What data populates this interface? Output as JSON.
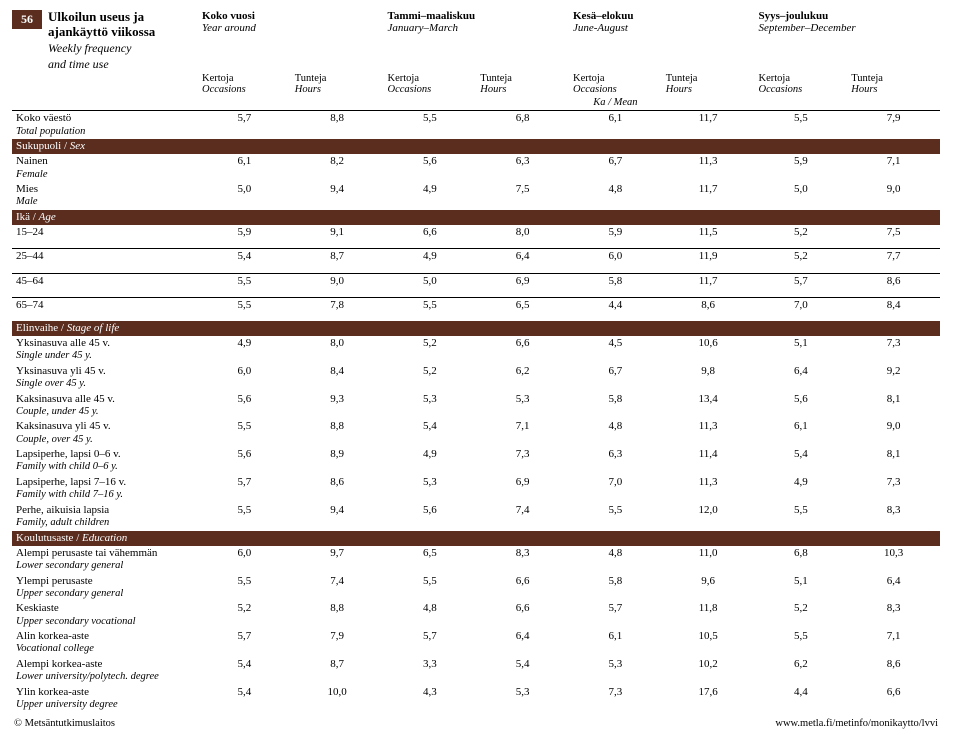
{
  "page_number": "56",
  "title_fi": "Ulkoilun useus ja ajankäyttö viikossa",
  "title_en_1": "Weekly frequency",
  "title_en_2": "and time use",
  "periods": [
    {
      "fi": "Koko vuosi",
      "en": "Year around"
    },
    {
      "fi": "Tammi–maaliskuu",
      "en": "January–March"
    },
    {
      "fi": "Kesä–elokuu",
      "en": "June-August"
    },
    {
      "fi": "Syys–joulukuu",
      "en": "September–December"
    }
  ],
  "subheads": {
    "kertoja_fi": "Kertoja",
    "kertoja_en": "Occasions",
    "tunteja_fi": "Tunteja",
    "tunteja_en": "Hours",
    "mean": "Ka / Mean"
  },
  "rows": [
    {
      "type": "data",
      "fi": "Koko väestö",
      "en": "Total population",
      "v": [
        "5,7",
        "8,8",
        "5,5",
        "6,8",
        "6,1",
        "11,7",
        "5,5",
        "7,9"
      ],
      "ruled": true
    },
    {
      "type": "section",
      "fi": "Sukupuoli / ",
      "en": "Sex"
    },
    {
      "type": "data",
      "fi": "Nainen",
      "en": "Female",
      "v": [
        "6,1",
        "8,2",
        "5,6",
        "6,3",
        "6,7",
        "11,3",
        "5,9",
        "7,1"
      ]
    },
    {
      "type": "data",
      "fi": "Mies",
      "en": "Male",
      "v": [
        "5,0",
        "9,4",
        "4,9",
        "7,5",
        "4,8",
        "11,7",
        "5,0",
        "9,0"
      ]
    },
    {
      "type": "section",
      "fi": "Ikä / ",
      "en": "Age"
    },
    {
      "type": "data",
      "fi": "15–24",
      "en": "",
      "v": [
        "5,9",
        "9,1",
        "6,6",
        "8,0",
        "5,9",
        "11,5",
        "5,2",
        "7,5"
      ]
    },
    {
      "type": "spacer"
    },
    {
      "type": "data",
      "fi": "25–44",
      "en": "",
      "v": [
        "5,4",
        "8,7",
        "4,9",
        "6,4",
        "6,0",
        "11,9",
        "5,2",
        "7,7"
      ],
      "ruled": true
    },
    {
      "type": "spacer"
    },
    {
      "type": "data",
      "fi": "45–64",
      "en": "",
      "v": [
        "5,5",
        "9,0",
        "5,0",
        "6,9",
        "5,8",
        "11,7",
        "5,7",
        "8,6"
      ],
      "ruled": true
    },
    {
      "type": "spacer"
    },
    {
      "type": "data",
      "fi": "65–74",
      "en": "",
      "v": [
        "5,5",
        "7,8",
        "5,5",
        "6,5",
        "4,4",
        "8,6",
        "7,0",
        "8,4"
      ],
      "ruled": true
    },
    {
      "type": "spacer"
    },
    {
      "type": "section",
      "fi": "Elinvaihe / ",
      "en": "Stage of life"
    },
    {
      "type": "data",
      "fi": "Yksinasuva alle 45 v.",
      "en": "Single under 45 y.",
      "v": [
        "4,9",
        "8,0",
        "5,2",
        "6,6",
        "4,5",
        "10,6",
        "5,1",
        "7,3"
      ]
    },
    {
      "type": "data",
      "fi": "Yksinasuva yli 45 v.",
      "en": "Single over 45 y.",
      "v": [
        "6,0",
        "8,4",
        "5,2",
        "6,2",
        "6,7",
        "9,8",
        "6,4",
        "9,2"
      ]
    },
    {
      "type": "data",
      "fi": "Kaksinasuva alle 45 v.",
      "en": "Couple, under 45 y.",
      "v": [
        "5,6",
        "9,3",
        "5,3",
        "5,3",
        "5,8",
        "13,4",
        "5,6",
        "8,1"
      ]
    },
    {
      "type": "data",
      "fi": "Kaksinasuva yli 45 v.",
      "en": "Couple, over 45 y.",
      "v": [
        "5,5",
        "8,8",
        "5,4",
        "7,1",
        "4,8",
        "11,3",
        "6,1",
        "9,0"
      ]
    },
    {
      "type": "data",
      "fi": "Lapsiperhe, lapsi 0–6 v.",
      "en": "Family with child 0–6 y.",
      "v": [
        "5,6",
        "8,9",
        "4,9",
        "7,3",
        "6,3",
        "11,4",
        "5,4",
        "8,1"
      ]
    },
    {
      "type": "data",
      "fi": "Lapsiperhe, lapsi 7–16 v.",
      "en": "Family with child 7–16 y.",
      "v": [
        "5,7",
        "8,6",
        "5,3",
        "6,9",
        "7,0",
        "11,3",
        "4,9",
        "7,3"
      ]
    },
    {
      "type": "data",
      "fi": "Perhe, aikuisia lapsia",
      "en": "Family, adult children",
      "v": [
        "5,5",
        "9,4",
        "5,6",
        "7,4",
        "5,5",
        "12,0",
        "5,5",
        "8,3"
      ]
    },
    {
      "type": "section",
      "fi": "Koulutusaste / ",
      "en": "Education"
    },
    {
      "type": "data",
      "fi": "Alempi perusaste tai vähemmän",
      "en": "Lower secondary general",
      "v": [
        "6,0",
        "9,7",
        "6,5",
        "8,3",
        "4,8",
        "11,0",
        "6,8",
        "10,3"
      ]
    },
    {
      "type": "data",
      "fi": "Ylempi perusaste",
      "en": "Upper secondary general",
      "v": [
        "5,5",
        "7,4",
        "5,5",
        "6,6",
        "5,8",
        "9,6",
        "5,1",
        "6,4"
      ]
    },
    {
      "type": "data",
      "fi": "Keskiaste",
      "en": "Upper secondary vocational",
      "v": [
        "5,2",
        "8,8",
        "4,8",
        "6,6",
        "5,7",
        "11,8",
        "5,2",
        "8,3"
      ]
    },
    {
      "type": "data",
      "fi": "Alin korkea-aste",
      "en": "Vocational college",
      "v": [
        "5,7",
        "7,9",
        "5,7",
        "6,4",
        "6,1",
        "10,5",
        "5,5",
        "7,1"
      ]
    },
    {
      "type": "data",
      "fi": "Alempi korkea-aste",
      "en": "Lower university/polytech. degree",
      "v": [
        "5,4",
        "8,7",
        "3,3",
        "5,4",
        "5,3",
        "10,2",
        "6,2",
        "8,6"
      ]
    },
    {
      "type": "data",
      "fi": "Ylin korkea-aste",
      "en": "Upper university degree",
      "v": [
        "5,4",
        "10,0",
        "4,3",
        "5,3",
        "7,3",
        "17,6",
        "4,4",
        "6,6"
      ]
    }
  ],
  "footer_left": "© Metsäntutkimuslaitos",
  "footer_right": "www.metla.fi/metinfo/monikaytto/lvvi"
}
